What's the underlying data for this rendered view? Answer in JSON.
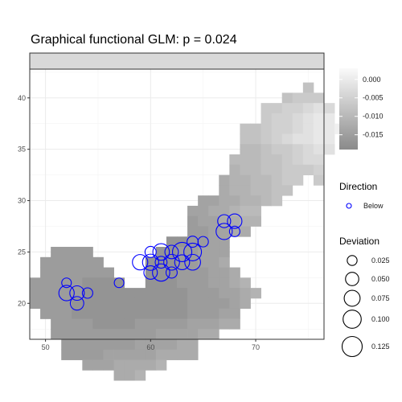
{
  "chart_data": {
    "type": "heatmap",
    "title": "Graphical functional GLM: p = 0.024",
    "xlim": [
      48.5,
      76.5
    ],
    "ylim": [
      16.5,
      42.8
    ],
    "x_ticks": [
      50,
      60,
      70
    ],
    "y_ticks": [
      20,
      25,
      30,
      35,
      40
    ],
    "grid": true,
    "color_scale": {
      "title": "",
      "min": -0.019,
      "max": 0.003,
      "low_color": "#8a8a8a",
      "high_color": "#fafafa",
      "ticks": [
        {
          "value": 0.0,
          "label": "0.000"
        },
        {
          "value": -0.005,
          "label": "-0.005"
        },
        {
          "value": -0.01,
          "label": "-0.010"
        },
        {
          "value": -0.015,
          "label": "-0.015"
        }
      ]
    },
    "cells": {
      "lon_start": 49,
      "lat_end": 42,
      "cell_size": 1,
      "rows": [
        "........................................",
        "..........................8.............",
        "........................8999............",
        "......................99aabcb...........",
        "......................9aabcdd...........",
        "....................889aabcdde..........",
        "....................889abccdd...........",
        "....................77899abcc...........",
        "...................777889abb............",
        "...................67788999a............",
        "..................56677899.9............",
        "..................5667788...............",
        "................44556678................",
        "...............4455677..................",
        "...............3445566..................",
        "...............334455...................",
        ".............223344.....................",
        "..3333......2233444.....................",
        ".333333....22233445.....................",
        ".3333333...222333445....................",
        "333332222..2223334456...................",
        "3333322222222223334456..................",
        "333322222222222333345...................",
        ".3332222222222233344....................",
        "..333322223333344455....................",
        "..3333333333444455......................",
        "...3333333444455........................",
        "...3333444445555........................",
        ".....44455556...........................",
        "........556.............................",
        "........................................"
      ],
      "value_map": {
        "1": -0.0185,
        "2": -0.017,
        "3": -0.0155,
        "4": -0.014,
        "5": -0.0125,
        "6": -0.011,
        "7": -0.0095,
        "8": -0.008,
        "9": -0.0065,
        "a": -0.005,
        "b": -0.0035,
        "c": -0.002,
        "d": -0.0005,
        "e": 0.001
      }
    },
    "points": [
      {
        "x": 52,
        "y": 22,
        "size": 0.015
      },
      {
        "x": 52,
        "y": 21,
        "size": 0.065
      },
      {
        "x": 53,
        "y": 21,
        "size": 0.055
      },
      {
        "x": 53,
        "y": 20,
        "size": 0.045
      },
      {
        "x": 54,
        "y": 21,
        "size": 0.02
      },
      {
        "x": 57,
        "y": 22,
        "size": 0.015
      },
      {
        "x": 59,
        "y": 24,
        "size": 0.065
      },
      {
        "x": 60,
        "y": 25,
        "size": 0.025
      },
      {
        "x": 60,
        "y": 24,
        "size": 0.075
      },
      {
        "x": 60,
        "y": 23,
        "size": 0.045
      },
      {
        "x": 61,
        "y": 25,
        "size": 0.08
      },
      {
        "x": 61,
        "y": 24,
        "size": 0.03
      },
      {
        "x": 61,
        "y": 23,
        "size": 0.09
      },
      {
        "x": 62,
        "y": 25,
        "size": 0.045
      },
      {
        "x": 62,
        "y": 24,
        "size": 0.07
      },
      {
        "x": 62,
        "y": 23,
        "size": 0.025
      },
      {
        "x": 63,
        "y": 25,
        "size": 0.12
      },
      {
        "x": 63,
        "y": 24,
        "size": 0.06
      },
      {
        "x": 64,
        "y": 26,
        "size": 0.025
      },
      {
        "x": 64,
        "y": 25,
        "size": 0.095
      },
      {
        "x": 64,
        "y": 24,
        "size": 0.07
      },
      {
        "x": 65,
        "y": 26,
        "size": 0.02
      },
      {
        "x": 67,
        "y": 28,
        "size": 0.04
      },
      {
        "x": 67,
        "y": 27,
        "size": 0.075
      },
      {
        "x": 68,
        "y": 28,
        "size": 0.055
      },
      {
        "x": 68,
        "y": 27,
        "size": 0.02
      }
    ],
    "point_color": "#0000ff",
    "direction_legend": {
      "title": "Direction",
      "entries": [
        "Below"
      ]
    },
    "size_legend": {
      "title": "Deviation",
      "entries": [
        {
          "value": 0.025,
          "label": "0.025"
        },
        {
          "value": 0.05,
          "label": "0.050"
        },
        {
          "value": 0.075,
          "label": "0.075"
        },
        {
          "value": 0.1,
          "label": "0.100"
        },
        {
          "value": 0.125,
          "label": "0.125"
        }
      ]
    }
  }
}
